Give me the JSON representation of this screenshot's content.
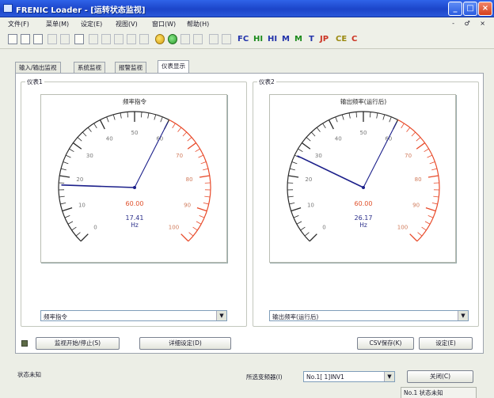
{
  "window": {
    "title": "FRENIC Loader - [运转状态监视]",
    "min_glyph": "_",
    "max_glyph": "□",
    "close_glyph": "×"
  },
  "menu": {
    "items": [
      "文件(F)",
      "菜单(M)",
      "设定(E)",
      "视图(V)",
      "窗口(W)",
      "帮助(H)"
    ],
    "mdi_controls": "- ♂ ×"
  },
  "toolbar": {
    "labels": [
      "FC",
      "HI",
      "HI",
      "M",
      "M",
      "T",
      "JP",
      "CE",
      "C"
    ]
  },
  "tabs": [
    "输入/输出监视",
    "系统监视",
    "报警监视",
    "仪表显示"
  ],
  "gauge_left": {
    "group_label": "仪表1",
    "title": "频率指令",
    "ticks": [
      "0",
      "10",
      "20",
      "30",
      "40",
      "50",
      "60",
      "70",
      "80",
      "90",
      "100"
    ],
    "max_value": "60.00",
    "reading": "17.41",
    "unit": "Hz",
    "needle_value": 17.41,
    "scale_max": 60,
    "selector": "频率指令"
  },
  "gauge_right": {
    "group_label": "仪表2",
    "title": "输出频率(运行后)",
    "ticks": [
      "0",
      "10",
      "20",
      "30",
      "40",
      "50",
      "60",
      "70",
      "80",
      "90",
      "100"
    ],
    "max_value": "60.00",
    "reading": "26.17",
    "unit": "Hz",
    "needle_value": 26.17,
    "scale_max": 60,
    "selector": "输出频率(运行后)"
  },
  "buttons": {
    "monitor_toggle": "监视开始/停止(S)",
    "detail_settings": "详细设定(D)",
    "csv_save": "CSV保存(K)",
    "settings": "设定(E)",
    "close": "关闭(C)"
  },
  "status": {
    "left_text": "状态未知",
    "station_label": "所选变频器(I)",
    "station_value": "No.1[ 1]INV1",
    "bottom_right": "No.1 状态未知"
  },
  "colors": {
    "needle": "#1b1f8a",
    "scale_red": "#e84a2a",
    "scale_dark": "#2a2a2a",
    "value_red": "#e0502a"
  }
}
